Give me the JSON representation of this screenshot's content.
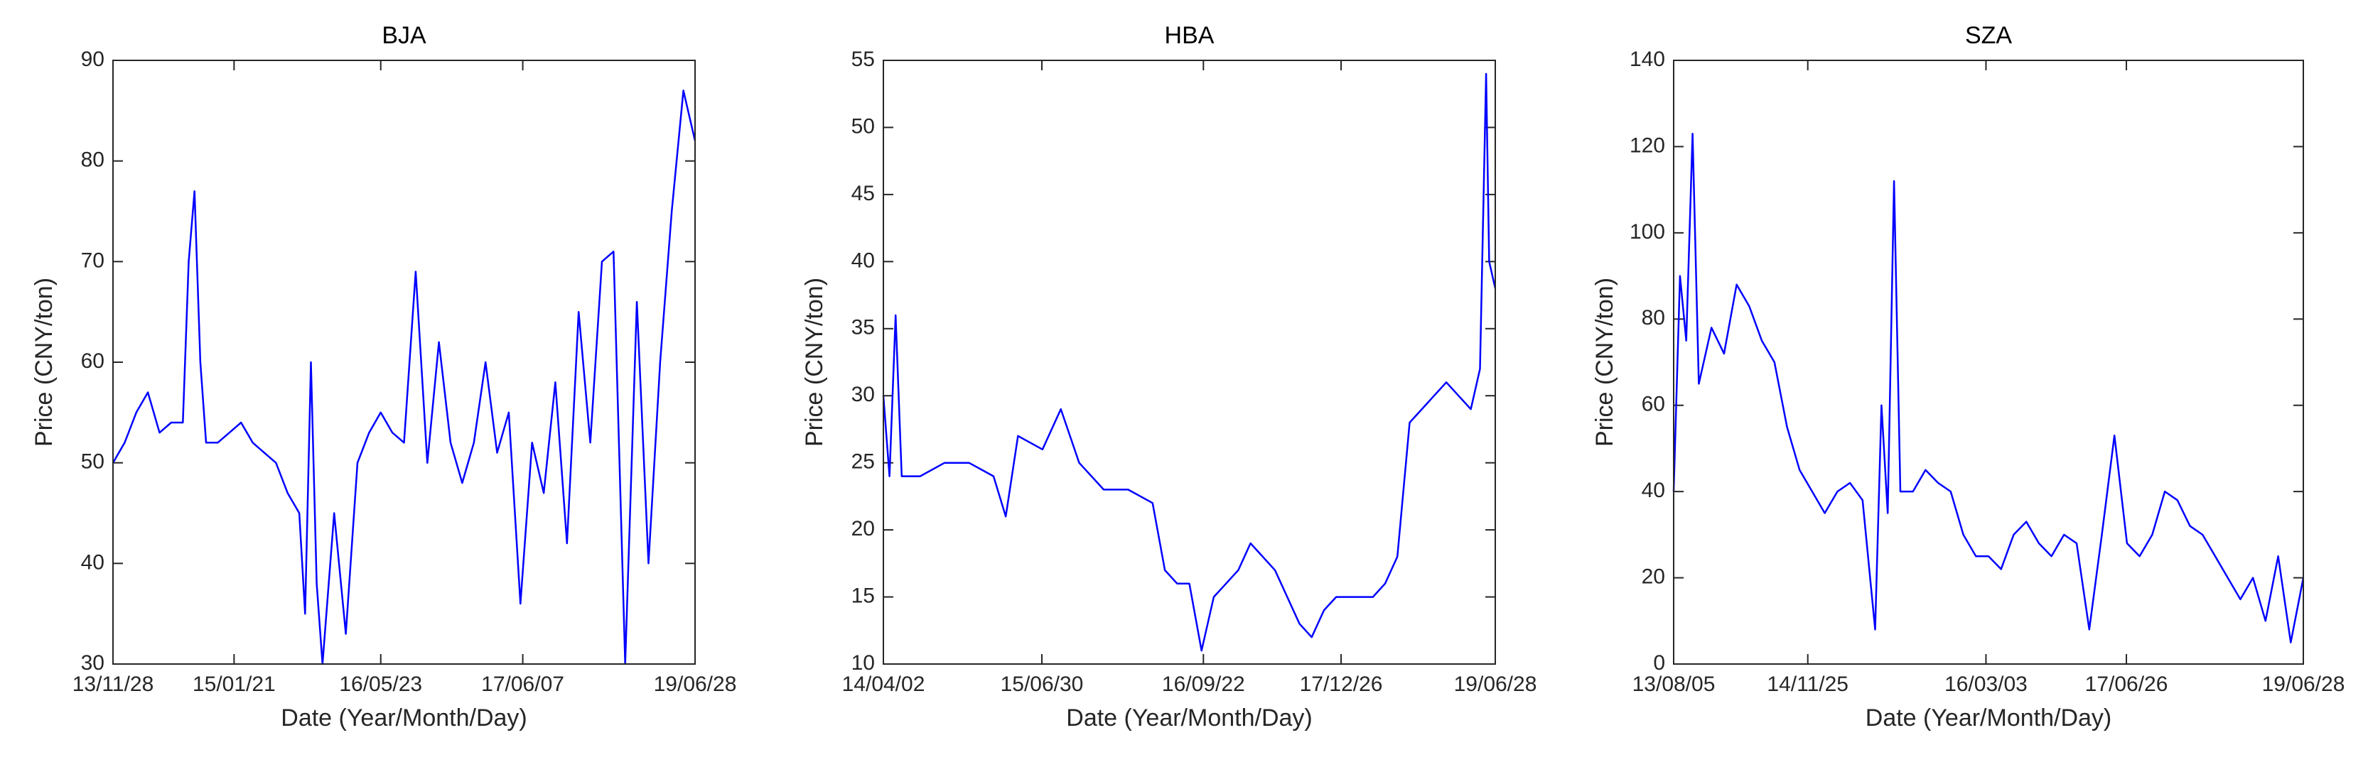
{
  "chart_data": [
    {
      "type": "line",
      "title": "BJA",
      "xlabel": "Date (Year/Month/Day)",
      "ylabel": "Price (CNY/ton)",
      "color": "#0000ff",
      "xlim": [
        0,
        1000
      ],
      "xticks": [
        {
          "value": 0,
          "label": "13/11/28"
        },
        {
          "value": 208,
          "label": "15/01/21"
        },
        {
          "value": 460,
          "label": "16/05/23"
        },
        {
          "value": 704,
          "label": "17/06/07"
        },
        {
          "value": 1000,
          "label": "19/06/28"
        }
      ],
      "ylim": [
        30,
        90
      ],
      "yticks": [
        30,
        40,
        50,
        60,
        70,
        80,
        90
      ],
      "x": [
        0,
        20,
        40,
        60,
        80,
        100,
        120,
        130,
        140,
        150,
        160,
        180,
        200,
        220,
        240,
        260,
        280,
        300,
        320,
        330,
        340,
        350,
        360,
        380,
        400,
        420,
        440,
        460,
        480,
        500,
        520,
        540,
        560,
        580,
        600,
        620,
        640,
        660,
        680,
        700,
        720,
        740,
        760,
        780,
        800,
        820,
        840,
        860,
        880,
        900,
        920,
        940,
        960,
        980,
        1000
      ],
      "values": [
        50,
        52,
        55,
        57,
        53,
        54,
        54,
        70,
        77,
        60,
        52,
        52,
        53,
        54,
        52,
        51,
        50,
        47,
        45,
        35,
        60,
        38,
        30,
        45,
        33,
        50,
        53,
        55,
        53,
        52,
        69,
        50,
        62,
        52,
        48,
        52,
        60,
        51,
        55,
        36,
        52,
        47,
        58,
        42,
        65,
        52,
        70,
        71,
        30,
        66,
        40,
        60,
        75,
        87,
        82
      ]
    },
    {
      "type": "line",
      "title": "HBA",
      "xlabel": "Date (Year/Month/Day)",
      "ylabel": "Price (CNY/ton)",
      "color": "#0000ff",
      "xlim": [
        0,
        1000
      ],
      "xticks": [
        {
          "value": 0,
          "label": "14/04/02"
        },
        {
          "value": 259,
          "label": "15/06/30"
        },
        {
          "value": 523,
          "label": "16/09/22"
        },
        {
          "value": 748,
          "label": "17/12/26"
        },
        {
          "value": 1000,
          "label": "19/06/28"
        }
      ],
      "ylim": [
        10,
        55
      ],
      "yticks": [
        10,
        15,
        20,
        25,
        30,
        35,
        40,
        45,
        50,
        55
      ],
      "x": [
        0,
        10,
        20,
        30,
        60,
        100,
        140,
        180,
        200,
        220,
        260,
        290,
        320,
        360,
        400,
        440,
        460,
        480,
        500,
        520,
        540,
        560,
        580,
        600,
        620,
        640,
        660,
        680,
        700,
        720,
        740,
        760,
        780,
        800,
        820,
        840,
        860,
        880,
        900,
        920,
        940,
        960,
        975,
        985,
        990,
        1000
      ],
      "values": [
        30,
        24,
        36,
        24,
        24,
        25,
        25,
        24,
        21,
        27,
        26,
        29,
        25,
        23,
        23,
        22,
        17,
        16,
        16,
        11,
        15,
        16,
        17,
        19,
        18,
        17,
        15,
        13,
        12,
        14,
        15,
        15,
        15,
        15,
        16,
        18,
        28,
        29,
        30,
        31,
        30,
        29,
        32,
        54,
        40,
        38
      ]
    },
    {
      "type": "line",
      "title": "SZA",
      "xlabel": "Date (Year/Month/Day)",
      "ylabel": "Price (CNY/ton)",
      "color": "#0000ff",
      "xlim": [
        0,
        1000
      ],
      "xticks": [
        {
          "value": 0,
          "label": "13/08/05"
        },
        {
          "value": 213,
          "label": "14/11/25"
        },
        {
          "value": 496,
          "label": "16/03/03"
        },
        {
          "value": 719,
          "label": "17/06/26"
        },
        {
          "value": 1000,
          "label": "19/06/28"
        }
      ],
      "ylim": [
        0,
        140
      ],
      "yticks": [
        0,
        20,
        40,
        60,
        80,
        100,
        120,
        140
      ],
      "x": [
        0,
        10,
        20,
        30,
        40,
        60,
        80,
        100,
        120,
        140,
        160,
        180,
        200,
        220,
        240,
        260,
        280,
        300,
        320,
        330,
        340,
        350,
        360,
        380,
        400,
        420,
        440,
        460,
        480,
        500,
        520,
        540,
        560,
        580,
        600,
        620,
        640,
        660,
        680,
        700,
        720,
        740,
        760,
        780,
        800,
        820,
        840,
        860,
        880,
        900,
        920,
        940,
        960,
        980,
        1000
      ],
      "values": [
        40,
        90,
        75,
        123,
        65,
        78,
        72,
        88,
        83,
        75,
        70,
        55,
        45,
        40,
        35,
        40,
        42,
        38,
        8,
        60,
        35,
        112,
        40,
        40,
        45,
        42,
        40,
        30,
        25,
        25,
        22,
        30,
        33,
        28,
        25,
        30,
        28,
        8,
        30,
        53,
        28,
        25,
        30,
        40,
        38,
        32,
        30,
        25,
        20,
        15,
        20,
        10,
        25,
        5,
        20
      ]
    }
  ]
}
